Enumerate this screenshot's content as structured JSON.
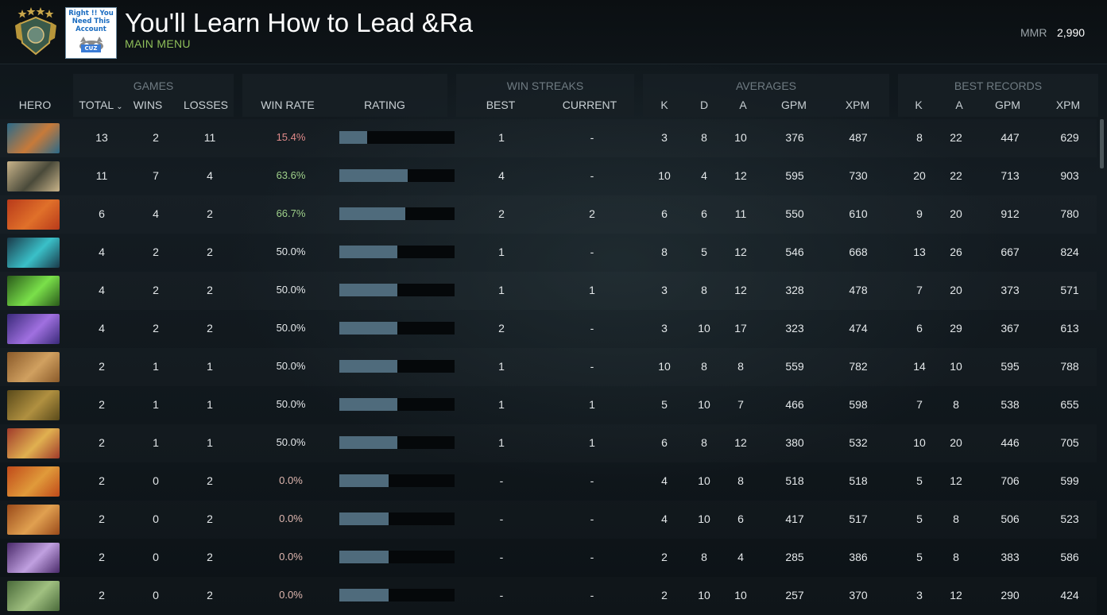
{
  "header": {
    "profile_name": "You'll Learn How to Lead &Ra",
    "nav_label": "MAIN MENU",
    "mmr_label": "MMR",
    "mmr_value": "2,990",
    "avatar_text": "Right !! You Need This Account",
    "avatar_badge": "CUZ"
  },
  "groups": {
    "games": "GAMES",
    "win_streaks": "WIN STREAKS",
    "averages": "AVERAGES",
    "best_records": "BEST RECORDS"
  },
  "columns": {
    "hero": "HERO",
    "total": "TOTAL",
    "wins": "WINS",
    "losses": "LOSSES",
    "win_rate": "WIN RATE",
    "rating": "RATING",
    "best": "BEST",
    "current": "CURRENT",
    "avg_k": "K",
    "avg_d": "D",
    "avg_a": "A",
    "avg_gpm": "GPM",
    "avg_xpm": "XPM",
    "best_k": "K",
    "best_a": "A",
    "best_gpm": "GPM",
    "best_xpm": "XPM"
  },
  "colors": {
    "win_rate_low": "#e08a8a",
    "win_rate_high": "#9fd08a",
    "win_rate_mid": "#e4e8ea",
    "win_rate_zero": "#e0b8b0",
    "rating_fill": "#4f6b7c",
    "accent_green": "#8fbf5a"
  },
  "rows": [
    {
      "hero_colors": [
        "#2a6a8a",
        "#c77a3a"
      ],
      "total": "13",
      "wins": "2",
      "losses": "11",
      "win_rate": "15.4%",
      "rating": 0.24,
      "best": "1",
      "current": "-",
      "avg_k": "3",
      "avg_d": "8",
      "avg_a": "10",
      "avg_gpm": "376",
      "avg_xpm": "487",
      "best_k": "8",
      "best_a": "22",
      "best_gpm": "447",
      "best_xpm": "629"
    },
    {
      "hero_colors": [
        "#c9b48a",
        "#4a4a3a"
      ],
      "total": "11",
      "wins": "7",
      "losses": "4",
      "win_rate": "63.6%",
      "rating": 0.59,
      "best": "4",
      "current": "-",
      "avg_k": "10",
      "avg_d": "4",
      "avg_a": "12",
      "avg_gpm": "595",
      "avg_xpm": "730",
      "best_k": "20",
      "best_a": "22",
      "best_gpm": "713",
      "best_xpm": "903"
    },
    {
      "hero_colors": [
        "#b83a1a",
        "#e0702a"
      ],
      "total": "6",
      "wins": "4",
      "losses": "2",
      "win_rate": "66.7%",
      "rating": 0.57,
      "best": "2",
      "current": "2",
      "avg_k": "6",
      "avg_d": "6",
      "avg_a": "11",
      "avg_gpm": "550",
      "avg_xpm": "610",
      "best_k": "9",
      "best_a": "20",
      "best_gpm": "912",
      "best_xpm": "780"
    },
    {
      "hero_colors": [
        "#1a3a4a",
        "#3ac0c8"
      ],
      "total": "4",
      "wins": "2",
      "losses": "2",
      "win_rate": "50.0%",
      "rating": 0.5,
      "best": "1",
      "current": "-",
      "avg_k": "8",
      "avg_d": "5",
      "avg_a": "12",
      "avg_gpm": "546",
      "avg_xpm": "668",
      "best_k": "13",
      "best_a": "26",
      "best_gpm": "667",
      "best_xpm": "824"
    },
    {
      "hero_colors": [
        "#2a5a1a",
        "#7ae04a"
      ],
      "total": "4",
      "wins": "2",
      "losses": "2",
      "win_rate": "50.0%",
      "rating": 0.5,
      "best": "1",
      "current": "1",
      "avg_k": "3",
      "avg_d": "8",
      "avg_a": "12",
      "avg_gpm": "328",
      "avg_xpm": "478",
      "best_k": "7",
      "best_a": "20",
      "best_gpm": "373",
      "best_xpm": "571"
    },
    {
      "hero_colors": [
        "#3a2a7a",
        "#a070e0"
      ],
      "total": "4",
      "wins": "2",
      "losses": "2",
      "win_rate": "50.0%",
      "rating": 0.5,
      "best": "2",
      "current": "-",
      "avg_k": "3",
      "avg_d": "10",
      "avg_a": "17",
      "avg_gpm": "323",
      "avg_xpm": "474",
      "best_k": "6",
      "best_a": "29",
      "best_gpm": "367",
      "best_xpm": "613"
    },
    {
      "hero_colors": [
        "#8a5a2a",
        "#d0a060"
      ],
      "total": "2",
      "wins": "1",
      "losses": "1",
      "win_rate": "50.0%",
      "rating": 0.5,
      "best": "1",
      "current": "-",
      "avg_k": "10",
      "avg_d": "8",
      "avg_a": "8",
      "avg_gpm": "559",
      "avg_xpm": "782",
      "best_k": "14",
      "best_a": "10",
      "best_gpm": "595",
      "best_xpm": "788"
    },
    {
      "hero_colors": [
        "#5a4a1a",
        "#b09040"
      ],
      "total": "2",
      "wins": "1",
      "losses": "1",
      "win_rate": "50.0%",
      "rating": 0.5,
      "best": "1",
      "current": "1",
      "avg_k": "5",
      "avg_d": "10",
      "avg_a": "7",
      "avg_gpm": "466",
      "avg_xpm": "598",
      "best_k": "7",
      "best_a": "8",
      "best_gpm": "538",
      "best_xpm": "655"
    },
    {
      "hero_colors": [
        "#a03a2a",
        "#e0b050"
      ],
      "total": "2",
      "wins": "1",
      "losses": "1",
      "win_rate": "50.0%",
      "rating": 0.5,
      "best": "1",
      "current": "1",
      "avg_k": "6",
      "avg_d": "8",
      "avg_a": "12",
      "avg_gpm": "380",
      "avg_xpm": "532",
      "best_k": "10",
      "best_a": "20",
      "best_gpm": "446",
      "best_xpm": "705"
    },
    {
      "hero_colors": [
        "#c04a1a",
        "#e09a3a"
      ],
      "total": "2",
      "wins": "0",
      "losses": "2",
      "win_rate": "0.0%",
      "rating": 0.43,
      "best": "-",
      "current": "-",
      "avg_k": "4",
      "avg_d": "10",
      "avg_a": "8",
      "avg_gpm": "518",
      "avg_xpm": "518",
      "best_k": "5",
      "best_a": "12",
      "best_gpm": "706",
      "best_xpm": "599"
    },
    {
      "hero_colors": [
        "#9a4a1a",
        "#e0a050"
      ],
      "total": "2",
      "wins": "0",
      "losses": "2",
      "win_rate": "0.0%",
      "rating": 0.43,
      "best": "-",
      "current": "-",
      "avg_k": "4",
      "avg_d": "10",
      "avg_a": "6",
      "avg_gpm": "417",
      "avg_xpm": "517",
      "best_k": "5",
      "best_a": "8",
      "best_gpm": "506",
      "best_xpm": "523"
    },
    {
      "hero_colors": [
        "#4a2a6a",
        "#c0a0e0"
      ],
      "total": "2",
      "wins": "0",
      "losses": "2",
      "win_rate": "0.0%",
      "rating": 0.43,
      "best": "-",
      "current": "-",
      "avg_k": "2",
      "avg_d": "8",
      "avg_a": "4",
      "avg_gpm": "285",
      "avg_xpm": "386",
      "best_k": "5",
      "best_a": "8",
      "best_gpm": "383",
      "best_xpm": "586"
    },
    {
      "hero_colors": [
        "#4a6a3a",
        "#a0c080"
      ],
      "total": "2",
      "wins": "0",
      "losses": "2",
      "win_rate": "0.0%",
      "rating": 0.43,
      "best": "-",
      "current": "-",
      "avg_k": "2",
      "avg_d": "10",
      "avg_a": "10",
      "avg_gpm": "257",
      "avg_xpm": "370",
      "best_k": "3",
      "best_a": "12",
      "best_gpm": "290",
      "best_xpm": "424"
    }
  ]
}
